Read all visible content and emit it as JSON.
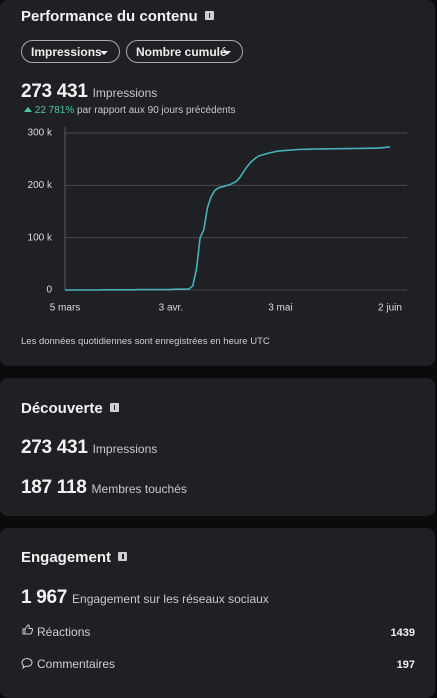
{
  "performance": {
    "title": "Performance du contenu",
    "filters": [
      "Impressions",
      "Nombre cumulé"
    ],
    "total": "273 431",
    "total_label": "Impressions",
    "change": "22 781%",
    "change_label": "par rapport aux 90 jours précédents",
    "note": "Les données quotidiennes sont enregistrées en heure UTC"
  },
  "chart_data": {
    "type": "line",
    "categories": [
      "5 mars",
      null,
      null,
      null,
      null,
      null,
      null,
      null,
      null,
      null,
      null,
      null,
      null,
      null,
      null,
      null,
      null,
      null,
      null,
      null,
      null,
      null,
      null,
      null,
      null,
      null,
      null,
      null,
      null,
      "3 avr.",
      null,
      null,
      null,
      null,
      null,
      null,
      null,
      null,
      null,
      null,
      null,
      null,
      null,
      null,
      null,
      null,
      null,
      null,
      null,
      null,
      null,
      null,
      null,
      null,
      null,
      null,
      null,
      null,
      null,
      "3 mai",
      null,
      null,
      null,
      null,
      null,
      null,
      null,
      null,
      null,
      null,
      null,
      null,
      null,
      null,
      null,
      null,
      null,
      null,
      null,
      null,
      null,
      null,
      null,
      null,
      null,
      null,
      null,
      null,
      null,
      "2 juin"
    ],
    "values": [
      0,
      0,
      0,
      0,
      0,
      0,
      0,
      0,
      0,
      0,
      300,
      300,
      300,
      300,
      300,
      300,
      300,
      300,
      300,
      300,
      800,
      800,
      800,
      800,
      800,
      800,
      800,
      800,
      800,
      800,
      1500,
      1500,
      1500,
      1500,
      2000,
      8000,
      40000,
      100000,
      115000,
      157000,
      178000,
      190000,
      195000,
      197000,
      199000,
      201000,
      204000,
      208000,
      216000,
      227000,
      237000,
      245000,
      251000,
      256000,
      258000,
      260000,
      262000,
      263500,
      265000,
      266000,
      266500,
      267000,
      267500,
      268000,
      268500,
      268700,
      268900,
      269100,
      269300,
      269400,
      269500,
      269600,
      269700,
      269800,
      269900,
      270000,
      270100,
      270200,
      270300,
      270400,
      270500,
      270600,
      270700,
      270800,
      270900,
      271000,
      271500,
      272000,
      272800,
      273431
    ],
    "color": "#48b0bc",
    "ylim": [
      0,
      300000
    ],
    "yticks": [
      0,
      {
        "value": 100000,
        "label": "100 k"
      },
      {
        "value": 200000,
        "label": "200 k"
      },
      {
        "value": 300000,
        "label": "300 k"
      }
    ],
    "grid": true
  },
  "discovery": {
    "title": "Découverte",
    "metrics": [
      {
        "value": "273 431",
        "label": "Impressions"
      },
      {
        "value": "187 118",
        "label": "Membres touchés"
      }
    ]
  },
  "engagement": {
    "title": "Engagement",
    "total": "1 967",
    "total_label": "Engagement sur les réseaux sociaux",
    "rows": [
      {
        "label": "Réactions",
        "value": 1439
      },
      {
        "label": "Commentaires",
        "value": 197
      }
    ]
  }
}
